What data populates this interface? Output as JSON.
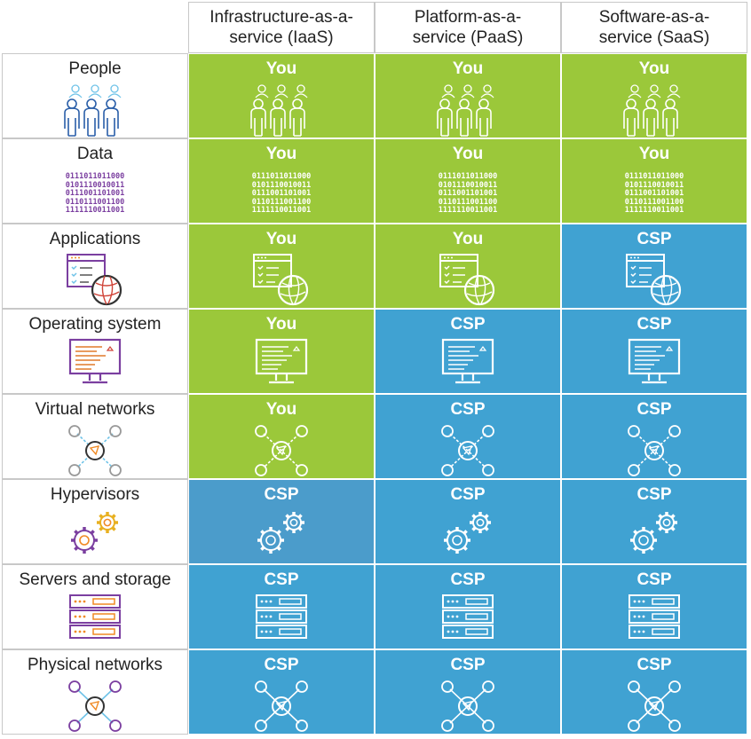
{
  "columns": [
    "Infrastructure-as-a-\nservice (IaaS)",
    "Platform-as-a-\nservice (PaaS)",
    "Software-as-a-\nservice (SaaS)"
  ],
  "colors": {
    "you": "#9bc83a",
    "csp": "#40a2d2",
    "csp_dark": "#4b9ccb"
  },
  "binary": [
    "0111011011000",
    "0101110010011",
    "0111001101001",
    "0110111001100",
    "1111110011001"
  ],
  "rows": [
    {
      "label": "People",
      "icon": "people-icon",
      "values": [
        "You",
        "You",
        "You"
      ]
    },
    {
      "label": "Data",
      "icon": "binary-data-icon",
      "values": [
        "You",
        "You",
        "You"
      ]
    },
    {
      "label": "Applications",
      "icon": "application-globe-icon",
      "values": [
        "You",
        "You",
        "CSP"
      ]
    },
    {
      "label": "Operating system",
      "icon": "monitor-icon",
      "values": [
        "You",
        "CSP",
        "CSP"
      ]
    },
    {
      "label": "Virtual networks",
      "icon": "virtual-network-icon",
      "values": [
        "You",
        "CSP",
        "CSP"
      ]
    },
    {
      "label": "Hypervisors",
      "icon": "gears-icon",
      "values": [
        "CSP",
        "CSP",
        "CSP"
      ]
    },
    {
      "label": "Servers and storage",
      "icon": "server-stack-icon",
      "values": [
        "CSP",
        "CSP",
        "CSP"
      ]
    },
    {
      "label": "Physical networks",
      "icon": "network-icon",
      "values": [
        "CSP",
        "CSP",
        "CSP"
      ]
    }
  ]
}
